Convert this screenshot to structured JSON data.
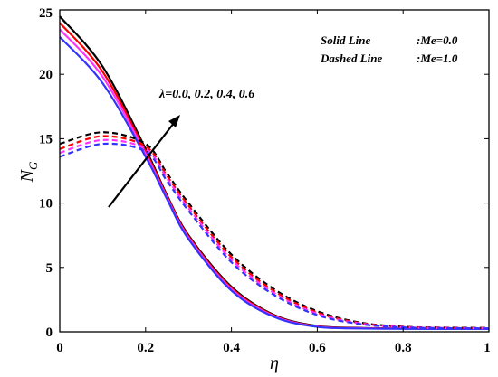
{
  "chart_data": {
    "type": "line",
    "xlabel": "η",
    "ylabel": "N",
    "ylabel_sub": "G",
    "xlim": [
      0,
      1
    ],
    "ylim": [
      0,
      25
    ],
    "x_ticks": [
      0,
      0.2,
      0.4,
      0.6,
      0.8,
      1
    ],
    "x_tick_labels": [
      "0",
      "0.2",
      "0.4",
      "0.6",
      "0.8",
      "1"
    ],
    "y_ticks": [
      0,
      5,
      10,
      15,
      20,
      25
    ],
    "y_tick_labels": [
      "0",
      "5",
      "10",
      "15",
      "20",
      "25"
    ],
    "grid": false,
    "legend_position": "top-right",
    "legend": [
      {
        "label": "Solid Line",
        "value": ":Me=0.0"
      },
      {
        "label": "Dashed Line",
        "value": ":Me=1.0"
      }
    ],
    "annotation": "λ=0.0, 0.2, 0.4, 0.6",
    "x": [
      0,
      0.1,
      0.2,
      0.25,
      0.3,
      0.4,
      0.5,
      0.6,
      0.7,
      0.8,
      0.9,
      1.0
    ],
    "series": [
      {
        "lambda": "0.0",
        "color": "#000000",
        "style": "solid",
        "values": [
          24.5,
          20.6,
          14.2,
          10.6,
          7.5,
          3.5,
          1.3,
          0.45,
          0.3,
          0.26,
          0.25,
          0.25
        ]
      },
      {
        "lambda": "0.2",
        "color": "#ff0000",
        "style": "solid",
        "values": [
          24.0,
          20.2,
          14.0,
          10.5,
          7.4,
          3.4,
          1.25,
          0.42,
          0.28,
          0.25,
          0.24,
          0.24
        ]
      },
      {
        "lambda": "0.4",
        "color": "#ff33ff",
        "style": "solid",
        "values": [
          23.5,
          19.8,
          13.8,
          10.4,
          7.3,
          3.3,
          1.2,
          0.4,
          0.27,
          0.24,
          0.23,
          0.23
        ]
      },
      {
        "lambda": "0.6",
        "color": "#3333ff",
        "style": "solid",
        "values": [
          22.9,
          19.3,
          13.6,
          10.3,
          7.2,
          3.2,
          1.15,
          0.38,
          0.26,
          0.23,
          0.22,
          0.22
        ]
      },
      {
        "lambda": "0.0",
        "color": "#000000",
        "style": "dashed",
        "values": [
          14.6,
          15.5,
          14.6,
          12.3,
          10.0,
          6.0,
          3.3,
          1.6,
          0.72,
          0.4,
          0.32,
          0.3
        ]
      },
      {
        "lambda": "0.2",
        "color": "#ff0000",
        "style": "dashed",
        "values": [
          14.2,
          15.2,
          14.4,
          12.1,
          9.8,
          5.8,
          3.15,
          1.5,
          0.68,
          0.38,
          0.3,
          0.28
        ]
      },
      {
        "lambda": "0.4",
        "color": "#ff33ff",
        "style": "dashed",
        "values": [
          13.9,
          14.9,
          14.2,
          11.9,
          9.6,
          5.6,
          3.0,
          1.4,
          0.64,
          0.36,
          0.29,
          0.27
        ]
      },
      {
        "lambda": "0.6",
        "color": "#3333ff",
        "style": "dashed",
        "values": [
          13.6,
          14.6,
          14.0,
          11.7,
          9.4,
          5.4,
          2.85,
          1.3,
          0.6,
          0.34,
          0.28,
          0.26
        ]
      }
    ]
  }
}
